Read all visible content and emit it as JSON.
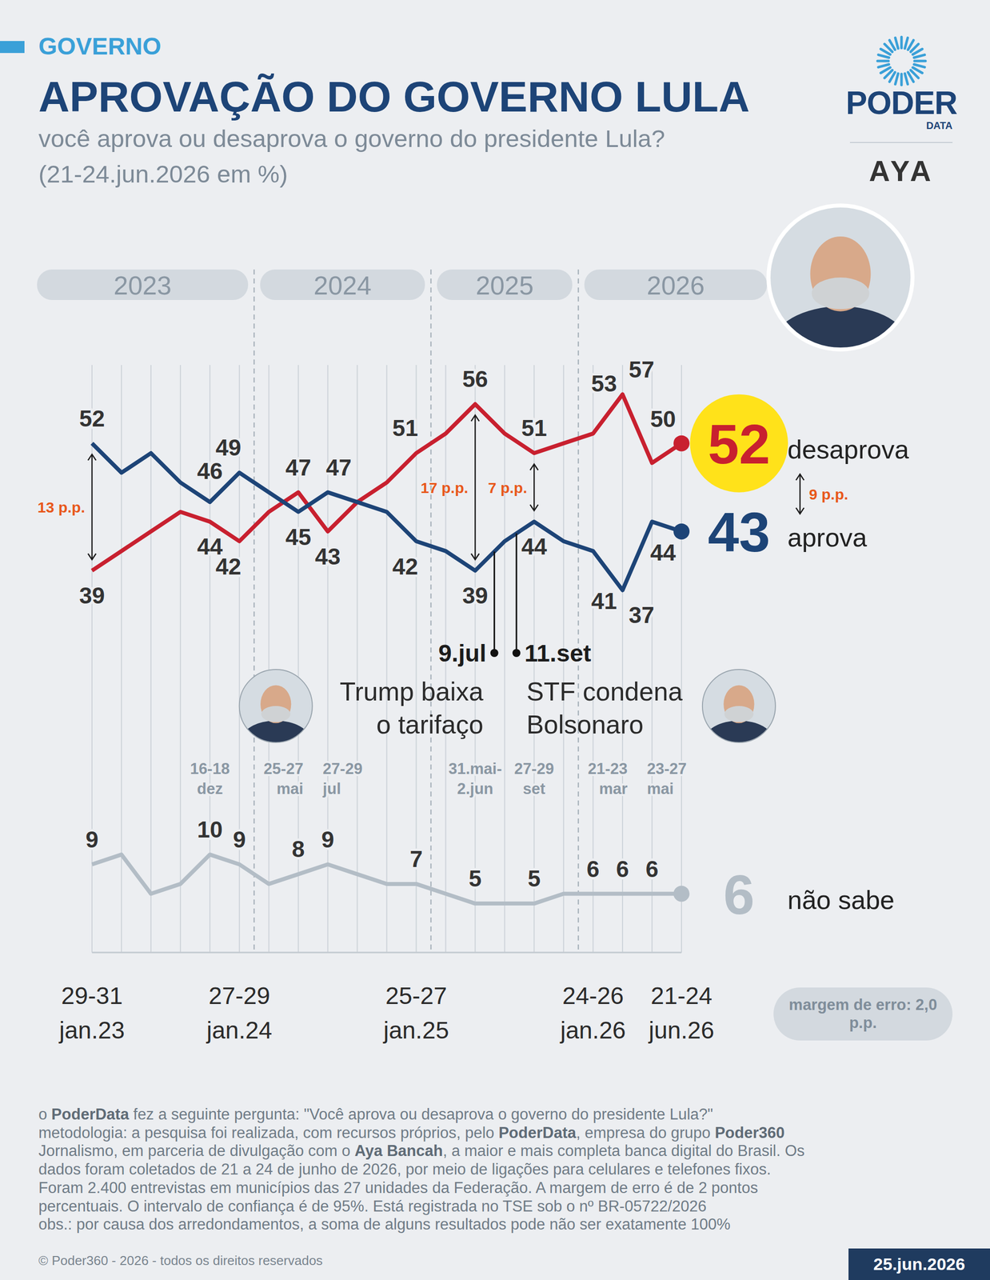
{
  "chart_data": {
    "type": "line",
    "section": "GOVERNO",
    "title": "APROVAÇÃO DO GOVERNO LULA",
    "subtitle": "você aprova ou desaprova o governo do presidente Lula?",
    "period": "(21-24.jun.2026 em %)",
    "categories": [
      "29-31 jan.23",
      null,
      null,
      null,
      null,
      "27-29 jan.24",
      null,
      null,
      null,
      null,
      null,
      "25-27 jan.25",
      null,
      null,
      null,
      null,
      null,
      "24-26 jan.26",
      null,
      null,
      "21-24 jun.26"
    ],
    "date_labels": [
      null,
      null,
      null,
      null,
      "16-18 dez",
      null,
      null,
      "25-27 mai",
      "27-29 jul",
      null,
      null,
      null,
      null,
      "31.mai-2.jun",
      null,
      "27-29 set",
      null,
      null,
      "21-23 mar",
      "23-27 mai",
      null
    ],
    "ylim": [
      0,
      60
    ],
    "tick_labels": false,
    "grid": true,
    "data_labels": true,
    "series": [
      {
        "name": "desaprova",
        "color": "#c8202f",
        "values": [
          39,
          41,
          43,
          45,
          44,
          42,
          45,
          47,
          43,
          46,
          48,
          51,
          53,
          56,
          53,
          51,
          52,
          53,
          57,
          50,
          52
        ],
        "value_labels": [
          "39",
          null,
          null,
          null,
          "44",
          "42",
          null,
          "47",
          "43",
          null,
          null,
          "51",
          null,
          "56",
          null,
          "51",
          null,
          "53",
          "57",
          "50",
          "52"
        ]
      },
      {
        "name": "aprova",
        "color": "#1d4477",
        "values": [
          52,
          49,
          51,
          48,
          46,
          49,
          47,
          45,
          47,
          46,
          45,
          42,
          41,
          39,
          42,
          44,
          42,
          41,
          37,
          44,
          43
        ],
        "value_labels": [
          "52",
          null,
          null,
          null,
          "46",
          "49",
          null,
          "45",
          "47",
          null,
          null,
          "42",
          null,
          "39",
          null,
          "44",
          null,
          "41",
          "37",
          "44",
          "43"
        ]
      },
      {
        "name": "não sabe",
        "color": "#b3bdc6",
        "values": [
          9,
          10,
          6,
          7,
          10,
          9,
          7,
          8,
          9,
          8,
          7,
          7,
          6,
          5,
          5,
          5,
          6,
          6,
          6,
          6,
          6
        ],
        "value_labels": [
          "9",
          null,
          null,
          null,
          "10",
          "9",
          null,
          "8",
          "9",
          null,
          null,
          "7",
          null,
          "5",
          null,
          "5",
          null,
          "6",
          "6",
          "6",
          "6"
        ]
      }
    ],
    "years": [
      "2023",
      "2024",
      "2025",
      "2026"
    ],
    "year_breaks": [
      5.5,
      11.5,
      16.5
    ],
    "gaps": [
      {
        "label": "13 p.p.",
        "index": 0
      },
      {
        "label": "17 p.p.",
        "index": 13
      },
      {
        "label": "7 p.p.",
        "index": 15
      },
      {
        "label": "9 p.p.",
        "index": 20
      }
    ],
    "events": [
      {
        "date": "9.jul",
        "label": "Trump baixa o tarifaço",
        "x": 13.65
      },
      {
        "date": "11.set",
        "label": "STF condena Bolsonaro",
        "x": 14.4
      }
    ]
  },
  "logo": {
    "name": "PODER",
    "sub": "DATA",
    "partner": "AYA"
  },
  "margin_of_error": "margem de erro: 2,0 p.p.",
  "footer": {
    "lines": [
      "o PoderData fez a seguinte pergunta: \"Você aprova ou desaprova o governo do presidente Lula?\"",
      "metodologia: a pesquisa foi realizada, com recursos próprios, pelo PoderData, empresa do grupo Poder360",
      "Jornalismo, em parceria de divulgação com o Aya Bancah, a maior e mais completa banca digital do Brasil. Os",
      "dados foram coletados de 21 a 24 de junho de 2026, por meio de ligações para celulares e telefones fixos.",
      "Foram 2.400 entrevistas em municípios das 27 unidades da Federação. A margem de erro é de 2 pontos",
      "percentuais. O intervalo de confiança é de 95%. Está registrada no TSE sob o nº BR-05722/2026",
      "obs.: por causa dos arredondamentos, a soma de alguns resultados pode não ser exatamente 100%"
    ],
    "bold": [
      "PoderData",
      "Poder360",
      "Aya Bancah"
    ],
    "copyright": "© Poder360 - 2026 - todos os direitos reservados",
    "date": "25.jun.2026"
  }
}
